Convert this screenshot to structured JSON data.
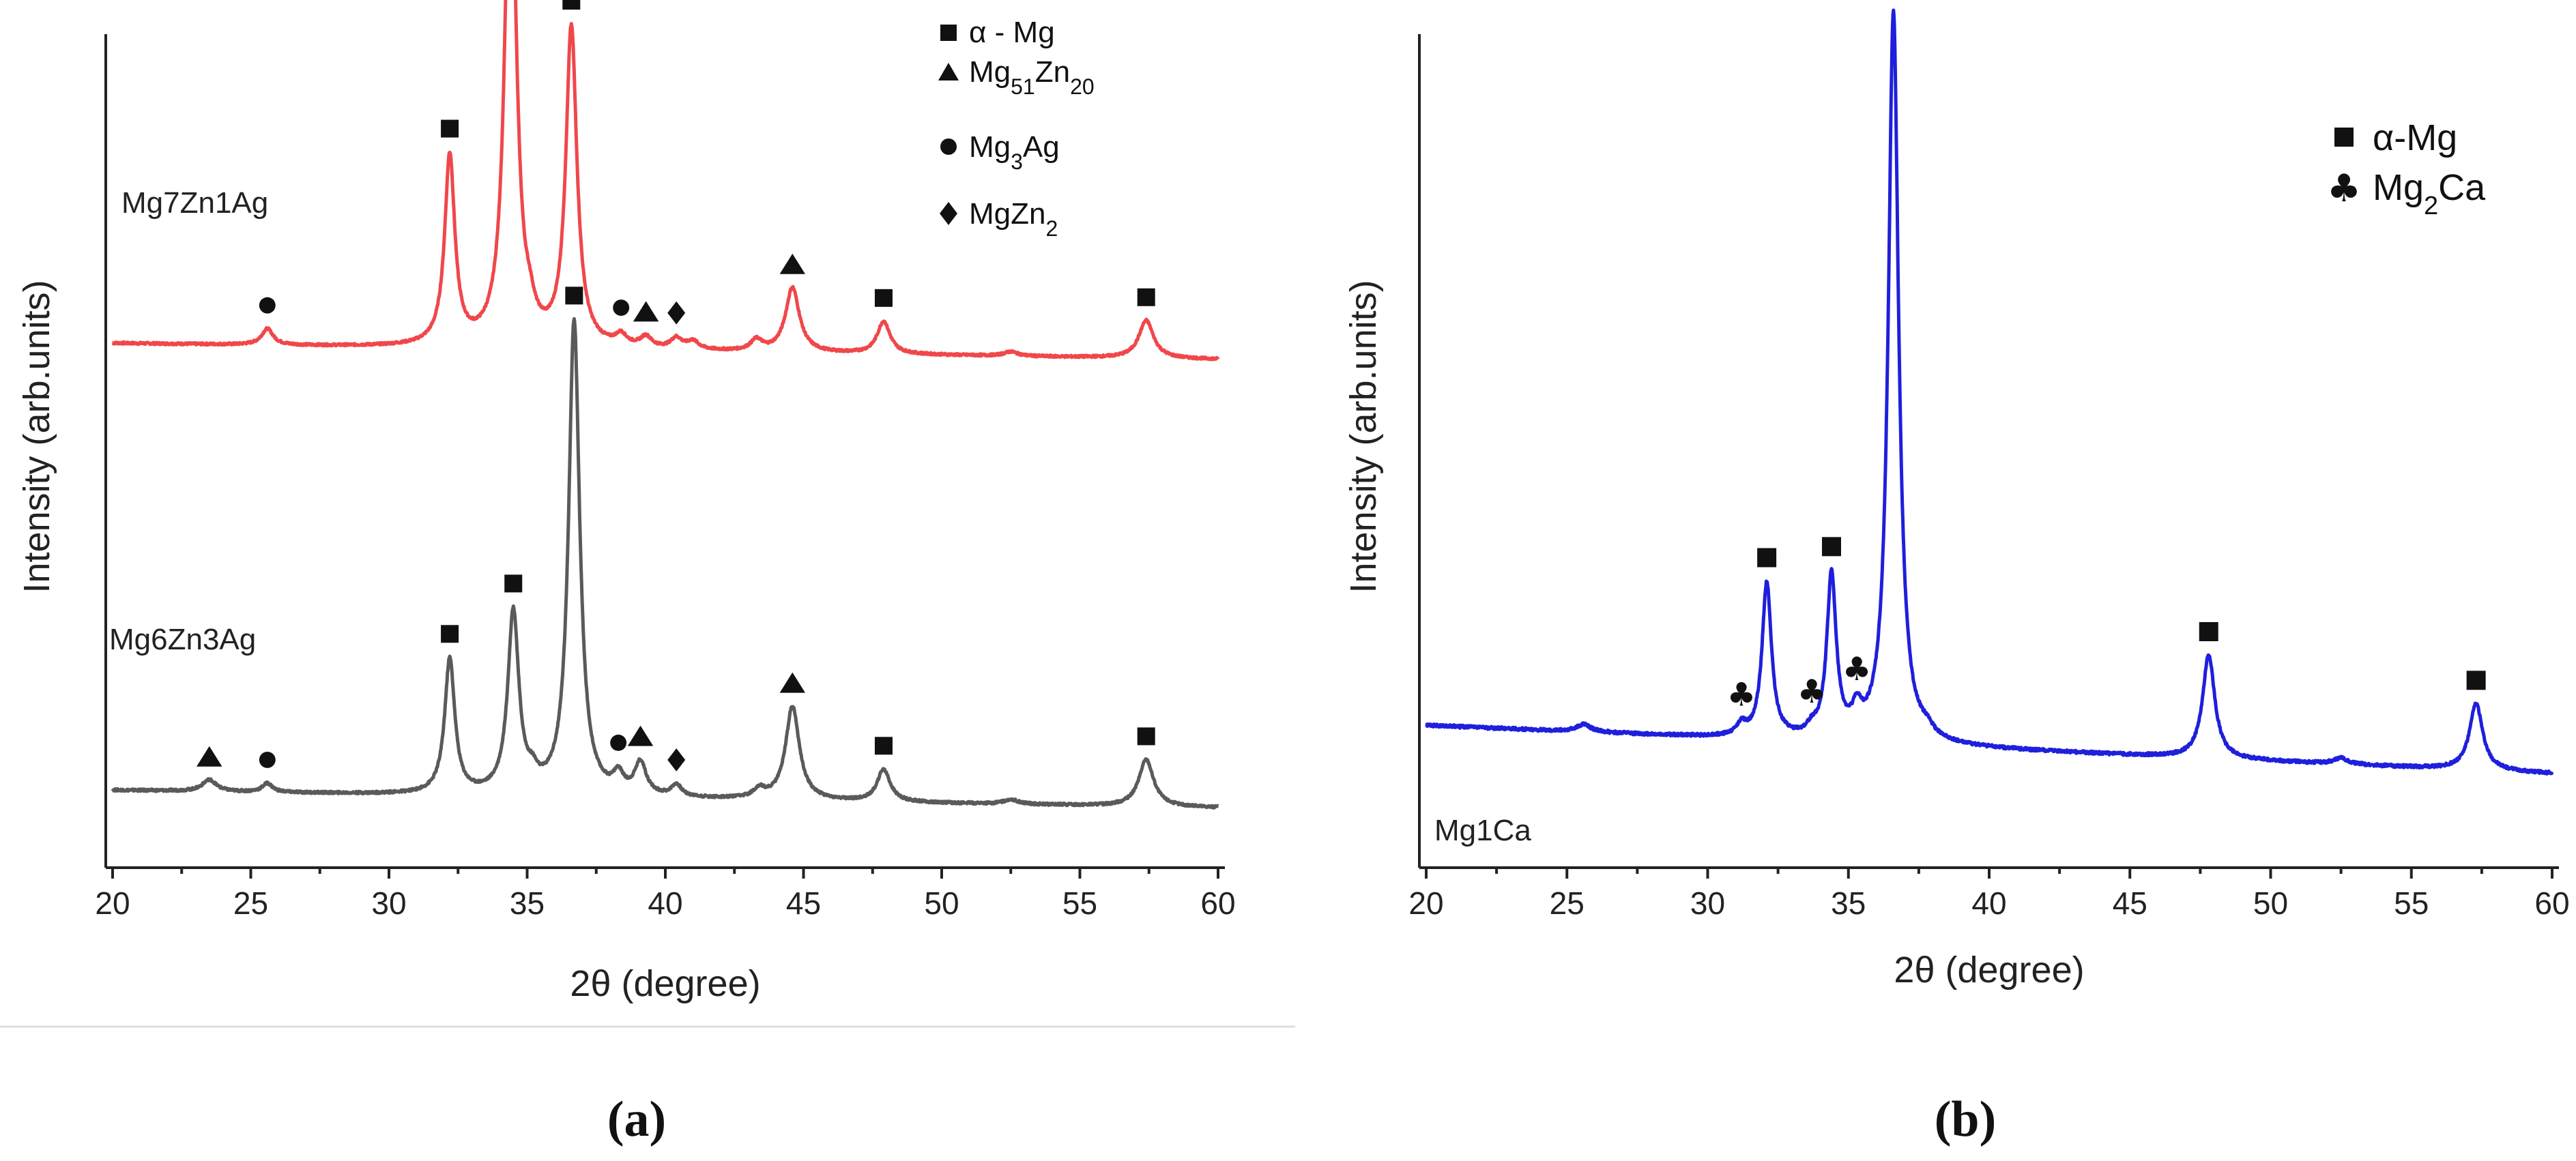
{
  "chart_data": [
    {
      "type": "line",
      "panel_label": "(a)",
      "xlabel": "2θ (degree)",
      "ylabel": "Intensity (arb.units)",
      "xlim": [
        20,
        60
      ],
      "xticks": [
        "20",
        "25",
        "30",
        "35",
        "40",
        "45",
        "50",
        "55",
        "60"
      ],
      "yticks": [],
      "legend": [
        {
          "marker": "square",
          "label": "α - Mg"
        },
        {
          "marker": "triangle",
          "label": "Mg51Zn20",
          "base": "Mg",
          "sub1": "51",
          "mid": "Zn",
          "sub2": "20"
        },
        {
          "marker": "circle",
          "label": "Mg3Ag",
          "base": "Mg",
          "sub1": "3",
          "mid": "Ag"
        },
        {
          "marker": "diamond",
          "label": "MgZn2",
          "base": "MgZn",
          "sub1": "2"
        }
      ],
      "series": [
        {
          "name": "Mg7Zn1Ag",
          "color": "#f0474b",
          "baseline_start": 0.255,
          "baseline_end": 0.225,
          "peaks": [
            {
              "x": 25.6,
              "h": 0.03,
              "w": 0.25,
              "phase": "circle"
            },
            {
              "x": 32.2,
              "h": 0.35,
              "w": 0.22,
              "phase": "square"
            },
            {
              "x": 34.4,
              "h": 1.0,
              "w": 0.24,
              "phase": "square"
            },
            {
              "x": 35.1,
              "h": 0.03,
              "w": 0.2
            },
            {
              "x": 36.6,
              "h": 0.59,
              "w": 0.24,
              "phase": "square"
            },
            {
              "x": 38.4,
              "h": 0.02,
              "w": 0.25,
              "phase": "circle"
            },
            {
              "x": 39.3,
              "h": 0.02,
              "w": 0.25,
              "phase": "triangle"
            },
            {
              "x": 40.4,
              "h": 0.02,
              "w": 0.25,
              "phase": "diamond"
            },
            {
              "x": 41.0,
              "h": 0.015,
              "w": 0.25
            },
            {
              "x": 43.3,
              "h": 0.02,
              "w": 0.25
            },
            {
              "x": 44.6,
              "h": 0.12,
              "w": 0.3,
              "phase": "triangle"
            },
            {
              "x": 47.9,
              "h": 0.06,
              "w": 0.28,
              "phase": "square"
            },
            {
              "x": 52.5,
              "h": 0.008,
              "w": 0.3
            },
            {
              "x": 57.4,
              "h": 0.07,
              "w": 0.32,
              "phase": "square"
            }
          ]
        },
        {
          "name": "Mg6Zn3Ag",
          "color": "#5a5a5a",
          "baseline_start": 0.06,
          "baseline_end": 0.03,
          "peaks": [
            {
              "x": 23.5,
              "h": 0.02,
              "w": 0.3,
              "phase": "triangle"
            },
            {
              "x": 25.6,
              "h": 0.015,
              "w": 0.22,
              "phase": "circle"
            },
            {
              "x": 32.2,
              "h": 0.23,
              "w": 0.22,
              "phase": "square"
            },
            {
              "x": 34.5,
              "h": 0.31,
              "w": 0.24,
              "phase": "square"
            },
            {
              "x": 35.2,
              "h": 0.02,
              "w": 0.2
            },
            {
              "x": 36.7,
              "h": 0.81,
              "w": 0.24,
              "phase": "square"
            },
            {
              "x": 38.3,
              "h": 0.03,
              "w": 0.22,
              "phase": "circle"
            },
            {
              "x": 39.1,
              "h": 0.055,
              "w": 0.25,
              "phase": "triangle"
            },
            {
              "x": 40.4,
              "h": 0.02,
              "w": 0.22,
              "phase": "diamond"
            },
            {
              "x": 43.4,
              "h": 0.015,
              "w": 0.25
            },
            {
              "x": 44.6,
              "h": 0.16,
              "w": 0.3,
              "phase": "triangle"
            },
            {
              "x": 47.9,
              "h": 0.055,
              "w": 0.28,
              "phase": "square"
            },
            {
              "x": 52.5,
              "h": 0.008,
              "w": 0.3
            },
            {
              "x": 57.4,
              "h": 0.08,
              "w": 0.32,
              "phase": "square"
            }
          ]
        }
      ]
    },
    {
      "type": "line",
      "panel_label": "(b)",
      "xlabel": "2θ (degree)",
      "ylabel": "Intensity (arb.units)",
      "xlim": [
        20,
        60
      ],
      "xticks": [
        "20",
        "25",
        "30",
        "35",
        "40",
        "45",
        "50",
        "55",
        "60"
      ],
      "yticks": [],
      "legend": [
        {
          "marker": "square",
          "label": "α-Mg"
        },
        {
          "marker": "club",
          "label": "Mg2Ca",
          "base": "Mg",
          "sub1": "2",
          "mid": "Ca"
        }
      ],
      "series": [
        {
          "name": "Mg1Ca",
          "color": "#1f1fdc",
          "baseline_start": 0.135,
          "baseline_end": 0.07,
          "peaks": [
            {
              "x": 25.6,
              "h": 0.01,
              "w": 0.3
            },
            {
              "x": 31.2,
              "h": 0.015,
              "w": 0.2,
              "phase": "club"
            },
            {
              "x": 32.1,
              "h": 0.21,
              "w": 0.2,
              "phase": "square"
            },
            {
              "x": 33.7,
              "h": 0.01,
              "w": 0.2,
              "phase": "club"
            },
            {
              "x": 34.4,
              "h": 0.22,
              "w": 0.2,
              "phase": "square"
            },
            {
              "x": 35.3,
              "h": 0.03,
              "w": 0.2,
              "phase": "club"
            },
            {
              "x": 36.6,
              "h": 0.99,
              "w": 0.22,
              "phase": "square"
            },
            {
              "x": 37.8,
              "h": 0.01,
              "w": 0.25
            },
            {
              "x": 47.8,
              "h": 0.14,
              "w": 0.26,
              "phase": "square"
            },
            {
              "x": 52.5,
              "h": 0.008,
              "w": 0.3
            },
            {
              "x": 57.3,
              "h": 0.09,
              "w": 0.28,
              "phase": "square"
            }
          ]
        }
      ]
    }
  ]
}
